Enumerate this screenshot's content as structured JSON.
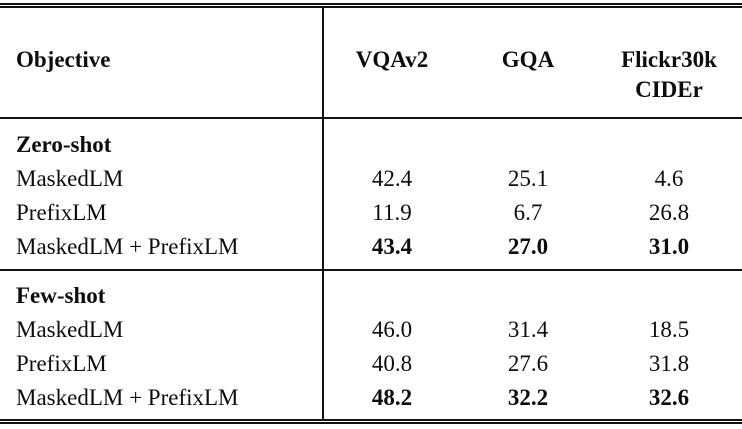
{
  "table": {
    "colors": {
      "background": "#ffffff",
      "text": "#0d0d0d",
      "rule": "#121212"
    },
    "header": {
      "objective_label": "Objective",
      "col1": "VQAv2",
      "col2": "GQA",
      "col3_line1": "Flickr30k",
      "col3_line2": "CIDEr"
    },
    "sections": [
      {
        "title": "Zero-shot",
        "rows": [
          {
            "label": "MaskedLM",
            "values": [
              "42.4",
              "25.1",
              "4.6"
            ],
            "bold": false
          },
          {
            "label": "PrefixLM",
            "values": [
              "11.9",
              "6.7",
              "26.8"
            ],
            "bold": false
          },
          {
            "label": "MaskedLM + PrefixLM",
            "values": [
              "43.4",
              "27.0",
              "31.0"
            ],
            "bold": true
          }
        ]
      },
      {
        "title": "Few-shot",
        "rows": [
          {
            "label": "MaskedLM",
            "values": [
              "46.0",
              "31.4",
              "18.5"
            ],
            "bold": false
          },
          {
            "label": "PrefixLM",
            "values": [
              "40.8",
              "27.6",
              "31.8"
            ],
            "bold": false
          },
          {
            "label": "MaskedLM + PrefixLM",
            "values": [
              "48.2",
              "32.2",
              "32.6"
            ],
            "bold": true
          }
        ]
      }
    ]
  },
  "chart_data": {
    "type": "table",
    "title": "",
    "columns": [
      "Objective",
      "VQAv2",
      "GQA",
      "Flickr30k CIDEr"
    ],
    "groups": [
      {
        "group": "Zero-shot",
        "rows": [
          [
            "MaskedLM",
            42.4,
            25.1,
            4.6
          ],
          [
            "PrefixLM",
            11.9,
            6.7,
            26.8
          ],
          [
            "MaskedLM + PrefixLM",
            43.4,
            27.0,
            31.0
          ]
        ],
        "bold_row": "MaskedLM + PrefixLM"
      },
      {
        "group": "Few-shot",
        "rows": [
          [
            "MaskedLM",
            46.0,
            31.4,
            18.5
          ],
          [
            "PrefixLM",
            40.8,
            27.6,
            31.8
          ],
          [
            "MaskedLM + PrefixLM",
            48.2,
            32.2,
            32.6
          ]
        ],
        "bold_row": "MaskedLM + PrefixLM"
      }
    ]
  }
}
